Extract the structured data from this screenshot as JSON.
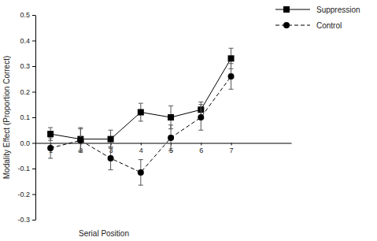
{
  "chart_data": {
    "type": "line",
    "x_label": "Serial Position",
    "y_label": "Modality Effect (Proportion Correct)",
    "x": [
      1,
      2,
      3,
      4,
      5,
      6,
      7
    ],
    "xlim": [
      0.5,
      9
    ],
    "xticks": [
      1,
      2,
      3,
      4,
      5,
      6,
      7
    ],
    "ylim": [
      -0.3,
      0.5
    ],
    "yticks": [
      -0.3,
      -0.2,
      -0.1,
      {
        "value": 0,
        "label": "0.0"
      },
      0.1,
      0.2,
      0.3,
      0.4,
      0.5
    ],
    "legend": "top-right",
    "series": [
      {
        "name": "Suppression",
        "color": "#000000",
        "marker": "square",
        "line_style": "solid",
        "values": [
          0.035,
          0.015,
          0.015,
          0.12,
          0.1,
          0.13,
          0.33
        ],
        "errors": [
          0.025,
          0.045,
          0.035,
          0.035,
          0.045,
          0.03,
          0.04
        ]
      },
      {
        "name": "Control",
        "color": "#000000",
        "marker": "circle",
        "line_style": "dashed",
        "values": [
          -0.02,
          0.01,
          -0.06,
          -0.115,
          0.02,
          0.1,
          0.26
        ],
        "errors": [
          0.04,
          0.045,
          0.045,
          0.05,
          0.05,
          0.05,
          0.05
        ]
      }
    ]
  }
}
